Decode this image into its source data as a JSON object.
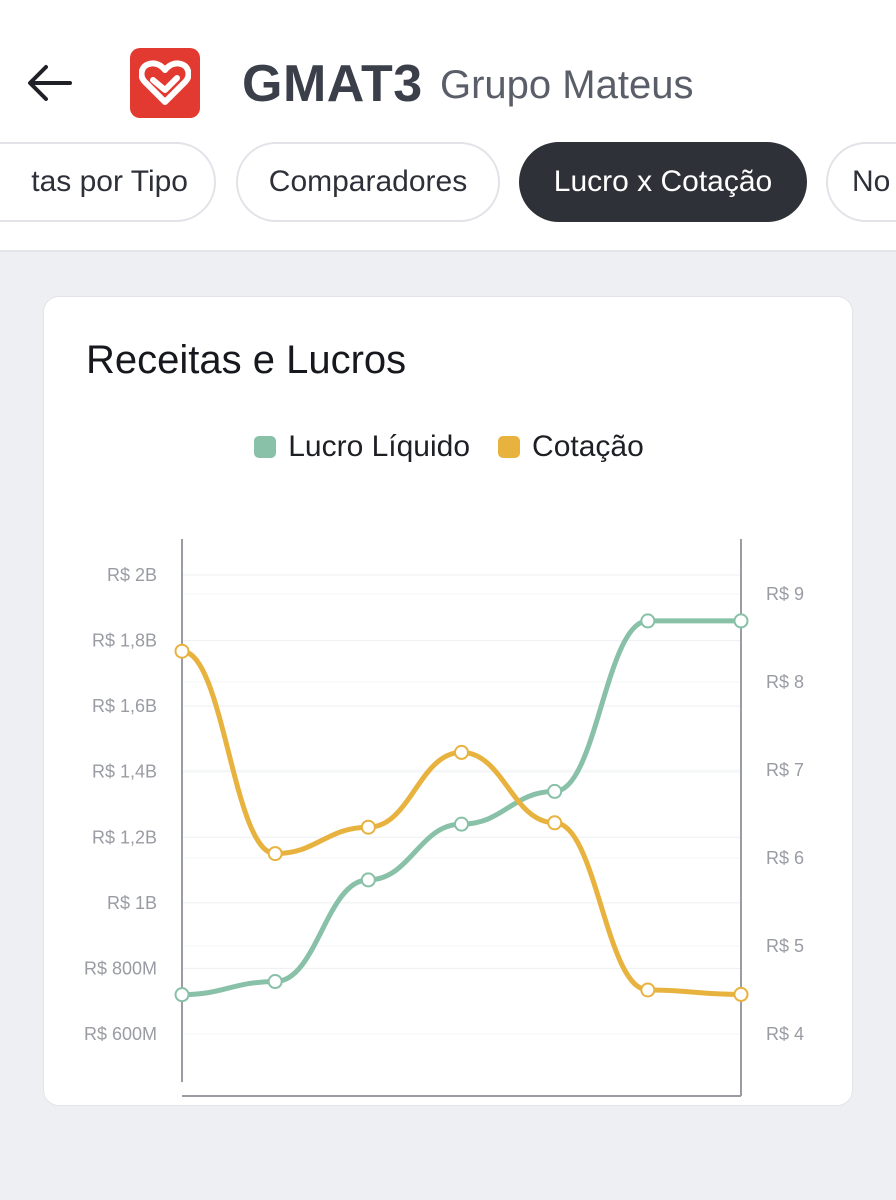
{
  "header": {
    "back_icon": "arrow-left-icon",
    "logo_icon": "heart-logo-icon",
    "ticker": "GMAT3",
    "company": "Grupo Mateus"
  },
  "tabs": [
    {
      "label": "tas por Tipo"
    },
    {
      "label": "Comparadores"
    },
    {
      "label": "Lucro x Cotação",
      "active": true
    },
    {
      "label": "No"
    }
  ],
  "colors": {
    "lucro": "#88c0a8",
    "cotacao": "#e8b23f",
    "active_tab": "#2e3138",
    "logo": "#e23a31"
  },
  "chart_data": {
    "type": "line",
    "title": "Receitas e Lucros",
    "legend_position": "top-center",
    "grid": true,
    "series": [
      {
        "name": "Lucro Líquido",
        "axis": "left",
        "values": [
          720000000,
          760000000,
          1070000000,
          1240000000,
          1340000000,
          1860000000,
          1860000000
        ]
      },
      {
        "name": "Cotação",
        "axis": "right",
        "values": [
          8.35,
          6.05,
          6.35,
          7.2,
          6.4,
          4.5,
          4.45
        ]
      }
    ],
    "left_axis": {
      "ylim": [
        600000000,
        2000000000
      ],
      "ticks": [
        600000000,
        800000000,
        1000000000,
        1200000000,
        1400000000,
        1600000000,
        1800000000,
        2000000000
      ],
      "tick_labels": [
        "R$ 600M",
        "R$ 800M",
        "R$ 1B",
        "R$ 1,2B",
        "R$ 1,4B",
        "R$ 1,6B",
        "R$ 1,8B",
        "R$ 2B"
      ]
    },
    "right_axis": {
      "ylim": [
        4,
        9
      ],
      "ticks": [
        4,
        5,
        6,
        7,
        8,
        9
      ],
      "tick_labels": [
        "R$ 4",
        "R$ 5",
        "R$ 6",
        "R$ 7",
        "R$ 8",
        "R$ 9"
      ]
    }
  }
}
